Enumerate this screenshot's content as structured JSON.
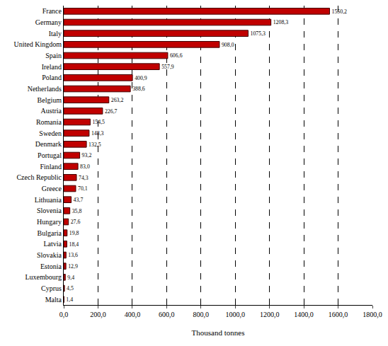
{
  "chart_data": {
    "type": "bar",
    "orientation": "horizontal",
    "x_label": "Thousand tonnes",
    "categories": [
      "France",
      "Germany",
      "Italy",
      "United Kingdom",
      "Spain",
      "Ireland",
      "Poland",
      "Netherlands",
      "Belgium",
      "Austria",
      "Romania",
      "Sweden",
      "Denmark",
      "Portugal",
      "Finland",
      "Czech Republic",
      "Greece",
      "Lithuania",
      "Slovenia",
      "Hungary",
      "Bulgaria",
      "Latvia",
      "Slovakia",
      "Estonia",
      "Luxembourg",
      "Cyprus",
      "Malta"
    ],
    "values": [
      1550.2,
      1208.3,
      1075.3,
      908.0,
      606.6,
      557.9,
      400.9,
      388.6,
      263.2,
      226.7,
      154.5,
      148.3,
      132.5,
      93.2,
      83.0,
      74.3,
      70.1,
      43.7,
      35.8,
      27.6,
      19.8,
      18.4,
      13.6,
      12.9,
      9.4,
      4.5,
      1.4
    ],
    "value_labels": [
      "1550,2",
      "1208,3",
      "1075,3",
      "908,0",
      "606,6",
      "557,9",
      "400,9",
      "388,6",
      "263,2",
      "226,7",
      "154,5",
      "148,3",
      "132,5",
      "93,2",
      "83,0",
      "74,3",
      "70,1",
      "43,7",
      "35,8",
      "27,6",
      "19,8",
      "18,4",
      "13,6",
      "12,9",
      "9,4",
      "4,5",
      "1,4"
    ],
    "data_labels": true,
    "color": "#c00000",
    "xlim": [
      0,
      1800
    ],
    "xticks": [
      {
        "value": 0,
        "label": "0,0"
      },
      {
        "value": 200,
        "label": "200,0"
      },
      {
        "value": 400,
        "label": "400,0"
      },
      {
        "value": 600,
        "label": "600,0"
      },
      {
        "value": 800,
        "label": "800,0"
      },
      {
        "value": 1000,
        "label": "1000,0"
      },
      {
        "value": 1200,
        "label": "1200,0"
      },
      {
        "value": 1400,
        "label": "1400,0"
      },
      {
        "value": 1600,
        "label": "1600,0"
      },
      {
        "value": 1800,
        "label": "1800,0"
      }
    ],
    "grid": true
  }
}
